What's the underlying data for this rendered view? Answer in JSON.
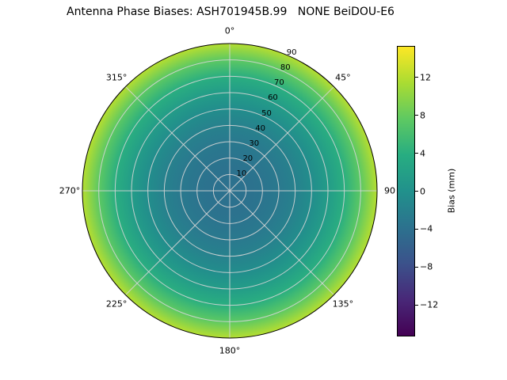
{
  "title": "Antenna Phase Biases: ASH701945B.99   NONE BeiDOU-E6",
  "chart_data": {
    "type": "heatmap",
    "projection": "polar",
    "title": "Antenna Phase Biases: ASH701945B.99   NONE BeiDOU-E6",
    "angular_ticks": [
      {
        "deg": 0,
        "label": "0°"
      },
      {
        "deg": 45,
        "label": "45°"
      },
      {
        "deg": 90,
        "label": "90"
      },
      {
        "deg": 135,
        "label": "135°"
      },
      {
        "deg": 180,
        "label": "180°"
      },
      {
        "deg": 225,
        "label": "225°"
      },
      {
        "deg": 270,
        "label": "270°"
      },
      {
        "deg": 315,
        "label": "315°"
      }
    ],
    "radial_ticks": [
      10,
      20,
      30,
      40,
      50,
      60,
      70,
      80,
      90
    ],
    "radial_max": 90,
    "radial_label_angle_deg": 22.5,
    "bias_profile": {
      "description": "phase bias (mm) vs zenith angle (deg), azimuthally symmetric",
      "zenith_deg": [
        0,
        10,
        20,
        30,
        40,
        50,
        60,
        70,
        80,
        90
      ],
      "bias_mm": [
        -4.0,
        -3.9,
        -3.6,
        -3.0,
        -2.0,
        -0.5,
        1.5,
        4.0,
        7.5,
        12.0
      ]
    },
    "colorbar": {
      "label": "Bias (mm)",
      "ticks": [
        12,
        8,
        4,
        0,
        -4,
        -8,
        -12
      ],
      "vmin": -15.3,
      "vmax": 15.3,
      "colormap": "viridis"
    },
    "viridis_stops": [
      {
        "t": 0.0,
        "color": "#440154"
      },
      {
        "t": 0.125,
        "color": "#482878"
      },
      {
        "t": 0.25,
        "color": "#3b528b"
      },
      {
        "t": 0.375,
        "color": "#2c728e"
      },
      {
        "t": 0.5,
        "color": "#21918c"
      },
      {
        "t": 0.625,
        "color": "#27ad81"
      },
      {
        "t": 0.75,
        "color": "#5ec962"
      },
      {
        "t": 0.875,
        "color": "#aadc32"
      },
      {
        "t": 1.0,
        "color": "#fde725"
      }
    ],
    "grid_color": "#d5d5d5",
    "spine_color": "#000000",
    "background": "#ffffff"
  }
}
